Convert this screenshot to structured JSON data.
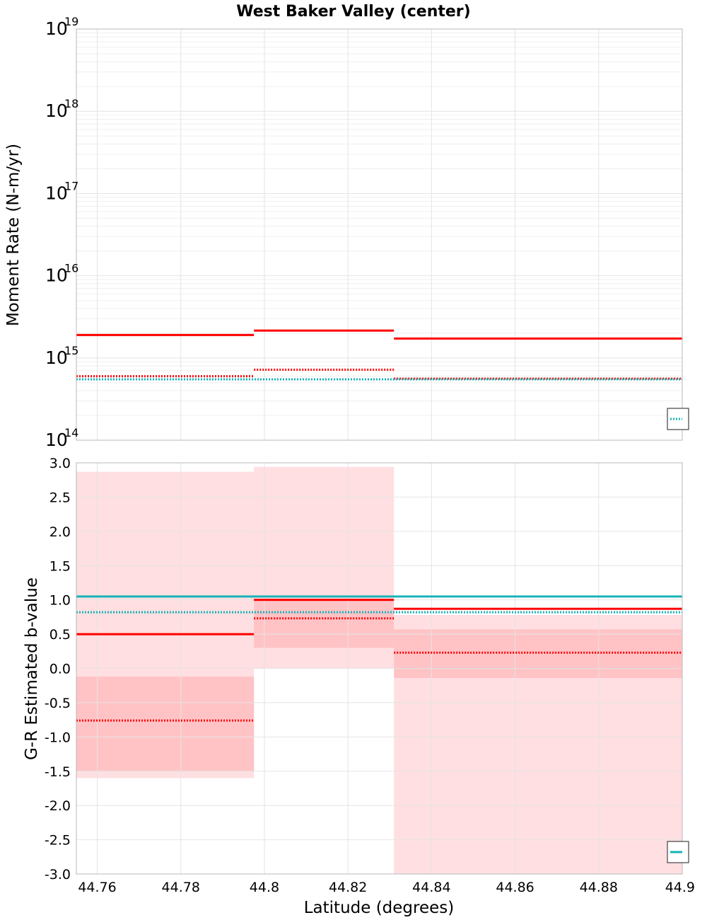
{
  "colors": {
    "red": "#ff0000",
    "cyan": "#17b3b9",
    "band_light": "#ffdfe1",
    "band_dark": "#ffc3c6"
  },
  "chart_data": [
    {
      "type": "line",
      "title": "West Baker Valley (center)",
      "ylabel": "Moment Rate (N-m/yr)",
      "xlim": [
        44.755,
        44.9
      ],
      "ylim": [
        100000000000000.0,
        1e+19
      ],
      "yscale": "log",
      "grid": true,
      "ytick_base": "10",
      "yticks": [
        {
          "value": 100000000000000.0,
          "exp": "14"
        },
        {
          "value": 1000000000000000.0,
          "exp": "15"
        },
        {
          "value": 1e+16,
          "exp": "16"
        },
        {
          "value": 1e+17,
          "exp": "17"
        },
        {
          "value": 1e+18,
          "exp": "18"
        },
        {
          "value": 1e+19,
          "exp": "19"
        }
      ],
      "series": [
        {
          "style": "solid",
          "color": "red",
          "segments": [
            {
              "x": [
                44.755,
                44.7975
              ],
              "y": 1900000000000000.0
            },
            {
              "x": [
                44.7975,
                44.831
              ],
              "y": 2150000000000000.0
            },
            {
              "x": [
                44.831,
                44.9
              ],
              "y": 1720000000000000.0
            }
          ]
        },
        {
          "style": "dotted",
          "color": "red",
          "segments": [
            {
              "x": [
                44.755,
                44.7975
              ],
              "y": 600000000000000.0
            },
            {
              "x": [
                44.7975,
                44.831
              ],
              "y": 720000000000000.0
            },
            {
              "x": [
                44.831,
                44.9
              ],
              "y": 560000000000000.0
            }
          ]
        },
        {
          "style": "dotted",
          "color": "cyan",
          "segments": [
            {
              "x": [
                44.755,
                44.9
              ],
              "y": 550000000000000.0
            }
          ]
        }
      ],
      "legend": "bottom-right"
    },
    {
      "type": "line",
      "xlabel": "Latitude (degrees)",
      "ylabel": "G-R Estimated b-value",
      "xlim": [
        44.755,
        44.9
      ],
      "ylim": [
        -3.0,
        3.0
      ],
      "grid": true,
      "xticks": [
        "44.76",
        "44.78",
        "44.8",
        "44.82",
        "44.84",
        "44.86",
        "44.88",
        "44.9"
      ],
      "xtick_values": [
        44.76,
        44.78,
        44.8,
        44.82,
        44.84,
        44.86,
        44.88,
        44.9
      ],
      "yticks": [
        "3.0",
        "2.5",
        "2.0",
        "1.5",
        "1.0",
        "0.5",
        "0.0",
        "-0.5",
        "-1.0",
        "-1.5",
        "-2.0",
        "-2.5",
        "-3.0"
      ],
      "ytick_values": [
        3.0,
        2.5,
        2.0,
        1.5,
        1.0,
        0.5,
        0.0,
        -0.5,
        -1.0,
        -1.5,
        -2.0,
        -2.5,
        -3.0
      ],
      "bands": [
        {
          "x": [
            44.755,
            44.7975
          ],
          "y": [
            -1.6,
            2.87
          ],
          "tone": "band_light"
        },
        {
          "x": [
            44.755,
            44.7975
          ],
          "y": [
            -1.5,
            -0.12
          ],
          "tone": "band_dark"
        },
        {
          "x": [
            44.7975,
            44.831
          ],
          "y": [
            0.0,
            2.94
          ],
          "tone": "band_light"
        },
        {
          "x": [
            44.7975,
            44.831
          ],
          "y": [
            0.3,
            1.0
          ],
          "tone": "band_dark"
        },
        {
          "x": [
            44.831,
            44.9
          ],
          "y": [
            -3.0,
            0.78
          ],
          "tone": "band_light"
        },
        {
          "x": [
            44.831,
            44.9
          ],
          "y": [
            -0.14,
            0.57
          ],
          "tone": "band_dark"
        }
      ],
      "series": [
        {
          "style": "solid",
          "color": "red",
          "segments": [
            {
              "x": [
                44.755,
                44.7975
              ],
              "y": 0.5
            },
            {
              "x": [
                44.7975,
                44.831
              ],
              "y": 1.0
            },
            {
              "x": [
                44.831,
                44.9
              ],
              "y": 0.87
            }
          ]
        },
        {
          "style": "dotted",
          "color": "red",
          "segments": [
            {
              "x": [
                44.755,
                44.7975
              ],
              "y": -0.76
            },
            {
              "x": [
                44.7975,
                44.831
              ],
              "y": 0.73
            },
            {
              "x": [
                44.831,
                44.9
              ],
              "y": 0.23
            }
          ]
        },
        {
          "style": "solid",
          "color": "cyan",
          "segments": [
            {
              "x": [
                44.755,
                44.9
              ],
              "y": 1.05
            }
          ]
        },
        {
          "style": "dotted",
          "color": "cyan",
          "segments": [
            {
              "x": [
                44.755,
                44.9
              ],
              "y": 0.82
            }
          ]
        }
      ],
      "legend": "bottom-right"
    }
  ]
}
